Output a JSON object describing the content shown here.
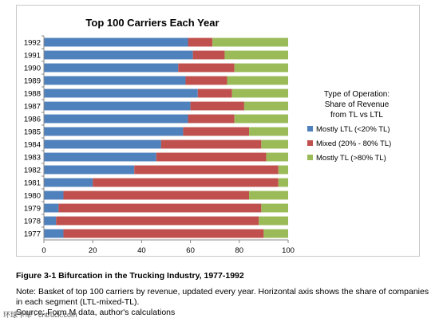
{
  "chart_data": {
    "type": "bar",
    "orientation": "horizontal",
    "stacked": true,
    "title": "Top 100 Carriers Each Year",
    "categories": [
      "1992",
      "1991",
      "1990",
      "1989",
      "1988",
      "1987",
      "1986",
      "1985",
      "1984",
      "1983",
      "1982",
      "1981",
      "1980",
      "1979",
      "1978",
      "1977"
    ],
    "series": [
      {
        "name": "Mostly LTL (<20% TL)",
        "color": "#4f81bd",
        "values": [
          59,
          61,
          55,
          58,
          63,
          60,
          59,
          57,
          48,
          46,
          37,
          20,
          8,
          6,
          5,
          8
        ]
      },
      {
        "name": "Mixed (20% - 80% TL)",
        "color": "#c0504d",
        "values": [
          10,
          13,
          23,
          17,
          14,
          22,
          19,
          27,
          41,
          45,
          59,
          76,
          76,
          83,
          83,
          82
        ]
      },
      {
        "name": "Mostly TL (>80% TL)",
        "color": "#9bbb59",
        "values": [
          31,
          26,
          22,
          25,
          23,
          18,
          22,
          16,
          11,
          9,
          4,
          4,
          16,
          11,
          12,
          10
        ]
      }
    ],
    "xlim": [
      0,
      100
    ],
    "xticks": [
      "0",
      "20",
      "40",
      "60",
      "80",
      "100"
    ],
    "legend": {
      "title_lines": [
        "Type of Operation:",
        "Share of Revenue",
        "from TL vs LTL"
      ],
      "placement": "right"
    },
    "grid": false
  },
  "caption": {
    "title": "Figure 3-1 Bifurcation in the Trucking Industry, 1977-1992",
    "note": "Note: Basket of top 100 carriers by revenue, updated every year. Horizontal axis shows the share of companies in each segment (LTL-mixed-TL).",
    "source": "Source: Form M data, author's calculations"
  },
  "watermark": "环球卡车 - cntruck.com"
}
